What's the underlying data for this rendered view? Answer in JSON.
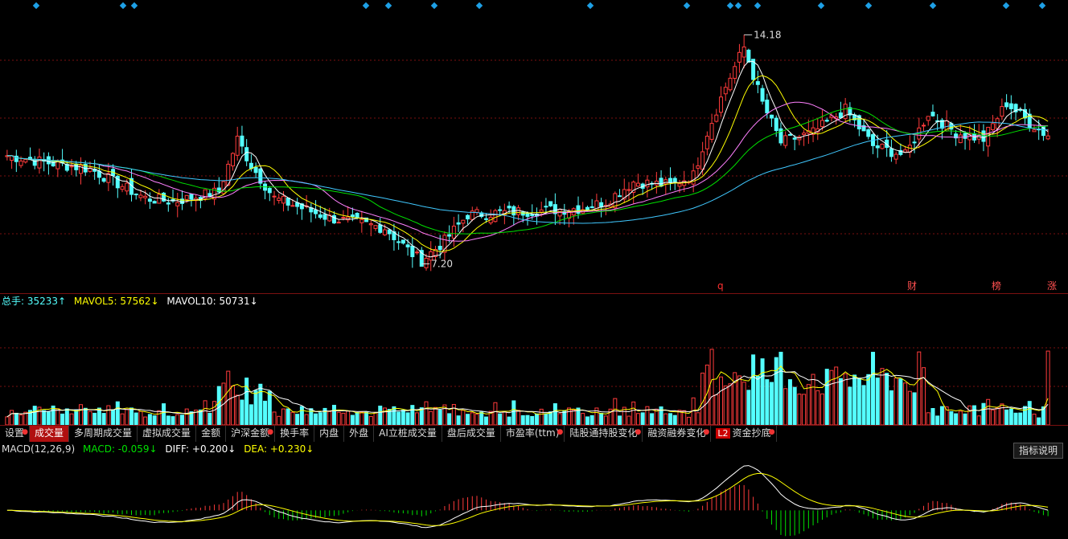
{
  "price_labels": {
    "high": "14.18",
    "low": "7.20"
  },
  "event_markers": [
    {
      "label": "q",
      "color": "#ff3030"
    },
    {
      "label": "财",
      "color": "#ff5050"
    },
    {
      "label": "榜",
      "color": "#ff5050"
    },
    {
      "label": "涨",
      "color": "#ff5050"
    }
  ],
  "volume_legend": {
    "total": "总手: 35233↑",
    "mavol5": "MAVOL5: 57562↓",
    "mavol10": "MAVOL10: 50731↓"
  },
  "tabs": [
    {
      "label": "设置",
      "dot": true,
      "active": false
    },
    {
      "label": "成交量",
      "dot": false,
      "active": true
    },
    {
      "label": "多周期成交量",
      "dot": false,
      "active": false
    },
    {
      "label": "虚拟成交量",
      "dot": false,
      "active": false
    },
    {
      "label": "金额",
      "dot": false,
      "active": false
    },
    {
      "label": "沪深金额",
      "dot": true,
      "active": false
    },
    {
      "label": "换手率",
      "dot": false,
      "active": false
    },
    {
      "label": "内盘",
      "dot": false,
      "active": false
    },
    {
      "label": "外盘",
      "dot": false,
      "active": false
    },
    {
      "label": "AI立桩成交量",
      "dot": false,
      "active": false
    },
    {
      "label": "盘后成交量",
      "dot": false,
      "active": false
    },
    {
      "label": "市盈率(ttm)",
      "dot": true,
      "active": false
    },
    {
      "label": "陆股通持股变化",
      "dot": true,
      "active": false
    },
    {
      "label": "融资融券变化",
      "dot": true,
      "active": false
    },
    {
      "label": "资金抄底",
      "dot": true,
      "active": false,
      "badge": "L2"
    }
  ],
  "macd_legend": {
    "name": "MACD(12,26,9)",
    "macd": "MACD: -0.059↓",
    "diff": "DIFF: +0.200↓",
    "dea": "DEA: +0.230↓"
  },
  "help_button": "指标说明",
  "colors": {
    "up": "#ff3b3b",
    "down": "#54ffff",
    "ma5": "#ffffff",
    "ma10": "#ffff00",
    "ma20": "#ff80ff",
    "ma30": "#00e000",
    "ma60": "#40c8ff",
    "grid": "#7a1010"
  },
  "chart_data": {
    "type": "candlestick",
    "price_high": 14.18,
    "price_low": 7.2,
    "anchors": [
      {
        "i": 0,
        "c": 10.5
      },
      {
        "i": 8,
        "c": 10.3
      },
      {
        "i": 18,
        "c": 10.1
      },
      {
        "i": 30,
        "c": 9.2
      },
      {
        "i": 36,
        "c": 9.1
      },
      {
        "i": 46,
        "c": 9.4
      },
      {
        "i": 50,
        "c": 11.0
      },
      {
        "i": 53,
        "c": 10.2
      },
      {
        "i": 58,
        "c": 9.2
      },
      {
        "i": 70,
        "c": 8.6
      },
      {
        "i": 82,
        "c": 8.3
      },
      {
        "i": 88,
        "c": 7.5
      },
      {
        "i": 90,
        "c": 7.3
      },
      {
        "i": 95,
        "c": 7.9
      },
      {
        "i": 100,
        "c": 8.7
      },
      {
        "i": 112,
        "c": 8.8
      },
      {
        "i": 125,
        "c": 8.9
      },
      {
        "i": 130,
        "c": 9.1
      },
      {
        "i": 136,
        "c": 9.7
      },
      {
        "i": 144,
        "c": 9.6
      },
      {
        "i": 149,
        "c": 9.9
      },
      {
        "i": 152,
        "c": 11.2
      },
      {
        "i": 156,
        "c": 12.6
      },
      {
        "i": 160,
        "c": 13.8
      },
      {
        "i": 164,
        "c": 12.1
      },
      {
        "i": 168,
        "c": 10.9
      },
      {
        "i": 175,
        "c": 11.2
      },
      {
        "i": 182,
        "c": 11.9
      },
      {
        "i": 188,
        "c": 10.8
      },
      {
        "i": 195,
        "c": 10.5
      },
      {
        "i": 200,
        "c": 11.8
      },
      {
        "i": 206,
        "c": 11.2
      },
      {
        "i": 212,
        "c": 11.0
      },
      {
        "i": 217,
        "c": 12.1
      },
      {
        "i": 222,
        "c": 11.5
      },
      {
        "i": 226,
        "c": 11.1
      }
    ],
    "count": 227,
    "macd_ylim": [
      -0.6,
      1.2
    ]
  }
}
